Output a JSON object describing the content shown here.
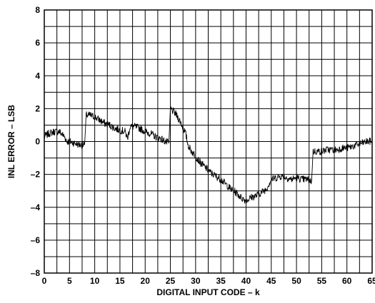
{
  "chart_data": {
    "type": "line",
    "xlabel": "DIGITAL INPUT CODE – k",
    "ylabel": "INL ERROR – LSB",
    "xlim": [
      0,
      65
    ],
    "ylim": [
      -8,
      8
    ],
    "x_major_ticks": [
      0,
      5,
      10,
      15,
      20,
      25,
      30,
      35,
      40,
      45,
      50,
      55,
      60,
      65
    ],
    "x_tick_labels": [
      "0",
      "5",
      "10",
      "15",
      "20",
      "25",
      "30",
      "35",
      "40",
      "45",
      "50",
      "55",
      "60",
      "65"
    ],
    "y_major_ticks": [
      -8,
      -6,
      -4,
      -2,
      0,
      2,
      4,
      6,
      8
    ],
    "y_tick_labels": [
      "–8",
      "–6",
      "–4",
      "–2",
      "0",
      "2",
      "4",
      "6",
      "8"
    ],
    "grid": true,
    "legend": "none",
    "line_color": "#000000",
    "series": [
      {
        "x": [
          0,
          1,
          2,
          3,
          4,
          4.5,
          5,
          6,
          7,
          8,
          8.3,
          8.6,
          9,
          10,
          11,
          12,
          13,
          14,
          15,
          16,
          16.5,
          17,
          18,
          19,
          20,
          21,
          22,
          23,
          24,
          24.7,
          25,
          26,
          27,
          28,
          28.5,
          29,
          30,
          31,
          32,
          33,
          34,
          35,
          36,
          37,
          38,
          39,
          40,
          41,
          42,
          43,
          44,
          44.5,
          45,
          46,
          47,
          48,
          49,
          50,
          51,
          52,
          53,
          53.3,
          54,
          55,
          56,
          57,
          58,
          59,
          60,
          61,
          62,
          63,
          64,
          65
        ],
        "y": [
          0.3,
          0.5,
          0.6,
          0.6,
          0.3,
          0.0,
          0.0,
          -0.1,
          -0.2,
          -0.2,
          1.6,
          1.6,
          1.6,
          1.5,
          1.3,
          1.1,
          1.0,
          0.8,
          0.7,
          0.6,
          0.2,
          0.9,
          0.9,
          0.8,
          0.6,
          0.5,
          0.3,
          0.2,
          0.0,
          -0.1,
          2.0,
          1.7,
          1.2,
          0.5,
          -0.2,
          -0.5,
          -0.9,
          -1.3,
          -1.6,
          -1.9,
          -2.1,
          -2.3,
          -2.6,
          -2.9,
          -3.1,
          -3.4,
          -3.6,
          -3.4,
          -3.3,
          -3.1,
          -2.9,
          -2.6,
          -2.3,
          -2.2,
          -2.1,
          -2.2,
          -2.3,
          -2.2,
          -2.3,
          -2.3,
          -2.4,
          -0.6,
          -0.6,
          -0.6,
          -0.5,
          -0.5,
          -0.5,
          -0.4,
          -0.4,
          -0.3,
          -0.2,
          -0.1,
          0.0,
          0.0
        ]
      }
    ]
  }
}
